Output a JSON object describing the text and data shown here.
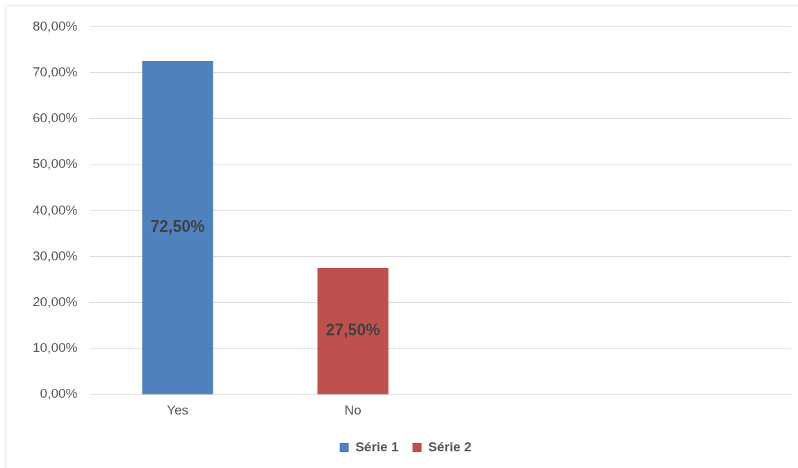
{
  "chart_data": {
    "type": "bar",
    "categories": [
      "Yes",
      "No",
      null,
      null
    ],
    "series": [
      {
        "name": "Série 1",
        "color": "#4f81bd",
        "values": [
          72.5,
          null,
          null,
          null
        ],
        "value_labels": [
          "72,50%",
          null,
          null,
          null
        ]
      },
      {
        "name": "Série 2",
        "color": "#c0504d",
        "values": [
          null,
          27.5,
          null,
          null
        ],
        "value_labels": [
          null,
          "27,50%",
          null,
          null
        ]
      }
    ],
    "ylim": [
      0,
      80
    ],
    "yticks": [
      {
        "value": 0,
        "label": "0,00%"
      },
      {
        "value": 10,
        "label": "10,00%"
      },
      {
        "value": 20,
        "label": "20,00%"
      },
      {
        "value": 30,
        "label": "30,00%"
      },
      {
        "value": 40,
        "label": "40,00%"
      },
      {
        "value": 50,
        "label": "50,00%"
      },
      {
        "value": 60,
        "label": "60,00%"
      },
      {
        "value": 70,
        "label": "70,00%"
      },
      {
        "value": 80,
        "label": "80,00%"
      }
    ],
    "grid": "y",
    "legend": "bottom"
  }
}
